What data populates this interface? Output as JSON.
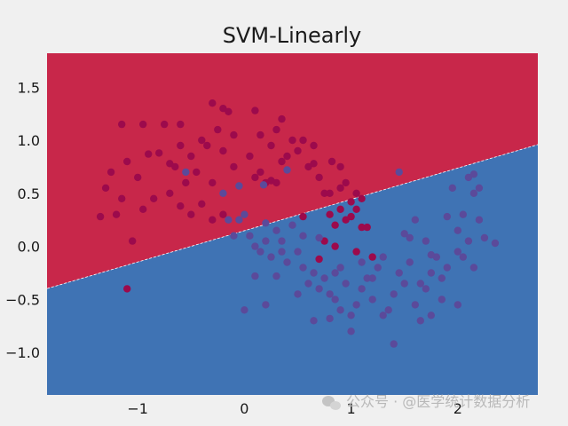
{
  "chart_data": {
    "type": "scatter",
    "title": "SVM-Linearly",
    "xlabel": "",
    "ylabel": "",
    "xlim": [
      -1.85,
      2.75
    ],
    "ylim": [
      -1.4,
      1.82
    ],
    "x_ticks": [
      {
        "value": -1,
        "label": "−1"
      },
      {
        "value": 0,
        "label": "0"
      },
      {
        "value": 1,
        "label": "1"
      },
      {
        "value": 2,
        "label": "2"
      }
    ],
    "y_ticks": [
      {
        "value": 1.5,
        "label": "1.5"
      },
      {
        "value": 1.0,
        "label": "1.0"
      },
      {
        "value": 0.5,
        "label": "0.5"
      },
      {
        "value": 0.0,
        "label": "0.0"
      },
      {
        "value": -0.5,
        "label": "−0.5"
      },
      {
        "value": -1.0,
        "label": "−1.0"
      }
    ],
    "grid": false,
    "decision_boundary": {
      "slope": 0.295,
      "intercept": 0.148
    },
    "regions": {
      "upper_color": "#c8274a",
      "lower_color": "#3f73b4"
    },
    "series": [
      {
        "class": 0,
        "color": "#9c0a4c",
        "points": [
          [
            -1.15,
            1.15
          ],
          [
            -0.95,
            1.15
          ],
          [
            -0.75,
            1.15
          ],
          [
            -0.6,
            1.15
          ],
          [
            -0.3,
            1.35
          ],
          [
            -0.2,
            1.3
          ],
          [
            -0.15,
            1.27
          ],
          [
            -1.3,
            0.55
          ],
          [
            -1.1,
            0.8
          ],
          [
            -1.0,
            0.65
          ],
          [
            -0.9,
            0.87
          ],
          [
            -0.8,
            0.88
          ],
          [
            -0.7,
            0.78
          ],
          [
            -0.65,
            0.75
          ],
          [
            -0.55,
            0.6
          ],
          [
            -0.5,
            0.85
          ],
          [
            -0.4,
            1.0
          ],
          [
            -0.35,
            0.95
          ],
          [
            -0.25,
            1.1
          ],
          [
            -0.2,
            0.9
          ],
          [
            -0.1,
            1.05
          ],
          [
            0.1,
            1.28
          ],
          [
            0.15,
            1.05
          ],
          [
            0.25,
            0.95
          ],
          [
            0.3,
            1.1
          ],
          [
            0.35,
            1.2
          ],
          [
            0.45,
            1.0
          ],
          [
            0.5,
            0.9
          ],
          [
            0.55,
            1.0
          ],
          [
            0.65,
            0.78
          ],
          [
            0.7,
            0.65
          ],
          [
            0.75,
            0.5
          ],
          [
            0.8,
            0.5
          ],
          [
            0.82,
            0.8
          ],
          [
            0.9,
            0.75
          ],
          [
            0.95,
            0.6
          ],
          [
            1.05,
            0.5
          ],
          [
            1.1,
            0.45
          ],
          [
            -1.35,
            0.28
          ],
          [
            -1.2,
            0.3
          ],
          [
            -1.05,
            0.05
          ],
          [
            -0.6,
            0.38
          ],
          [
            -0.5,
            0.3
          ],
          [
            -0.4,
            0.4
          ],
          [
            -0.3,
            0.25
          ],
          [
            -0.2,
            0.3
          ],
          [
            0.1,
            0.65
          ],
          [
            0.15,
            0.7
          ],
          [
            0.2,
            0.6
          ],
          [
            0.25,
            0.62
          ],
          [
            -1.1,
            -0.4
          ],
          [
            0.55,
            0.28
          ],
          [
            0.8,
            0.3
          ],
          [
            0.9,
            0.35
          ],
          [
            1.0,
            0.28
          ],
          [
            1.05,
            0.35
          ],
          [
            0.85,
            0.2
          ],
          [
            0.95,
            0.25
          ],
          [
            1.1,
            0.18
          ],
          [
            0.75,
            0.05
          ],
          [
            0.85,
            0.0
          ],
          [
            0.7,
            -0.12
          ],
          [
            1.05,
            -0.05
          ],
          [
            1.15,
            0.18
          ],
          [
            1.2,
            -0.1
          ],
          [
            -1.25,
            0.7
          ],
          [
            -0.85,
            0.45
          ],
          [
            -0.7,
            0.5
          ],
          [
            -0.3,
            0.6
          ],
          [
            0.05,
            0.85
          ],
          [
            -0.45,
            0.7
          ],
          [
            0.6,
            0.75
          ],
          [
            0.35,
            0.8
          ],
          [
            0.4,
            0.85
          ],
          [
            -0.6,
            0.95
          ],
          [
            -1.15,
            0.45
          ],
          [
            -0.95,
            0.35
          ],
          [
            -0.1,
            0.75
          ],
          [
            0.65,
            0.95
          ],
          [
            0.3,
            0.6
          ],
          [
            0.9,
            0.55
          ],
          [
            1.0,
            0.42
          ]
        ]
      },
      {
        "class": 1,
        "color": "#5b4a9a",
        "points": [
          [
            -0.55,
            0.7
          ],
          [
            0.4,
            0.72
          ],
          [
            0.18,
            0.58
          ],
          [
            -0.2,
            0.5
          ],
          [
            1.45,
            0.7
          ],
          [
            -0.05,
            0.57
          ],
          [
            -0.15,
            0.25
          ],
          [
            -0.05,
            0.25
          ],
          [
            0.0,
            0.3
          ],
          [
            0.05,
            0.1
          ],
          [
            0.1,
            0.0
          ],
          [
            0.15,
            -0.05
          ],
          [
            0.2,
            0.05
          ],
          [
            0.25,
            -0.1
          ],
          [
            0.3,
            0.15
          ],
          [
            0.35,
            0.05
          ],
          [
            0.4,
            -0.15
          ],
          [
            0.45,
            0.2
          ],
          [
            0.5,
            -0.05
          ],
          [
            0.55,
            -0.2
          ],
          [
            0.6,
            -0.35
          ],
          [
            0.65,
            -0.25
          ],
          [
            0.7,
            -0.4
          ],
          [
            0.75,
            -0.3
          ],
          [
            0.8,
            -0.45
          ],
          [
            0.85,
            -0.5
          ],
          [
            0.9,
            -0.2
          ],
          [
            0.95,
            -0.35
          ],
          [
            1.0,
            -0.65
          ],
          [
            1.05,
            -0.55
          ],
          [
            1.1,
            -0.4
          ],
          [
            1.15,
            -0.3
          ],
          [
            1.2,
            -0.5
          ],
          [
            1.25,
            -0.2
          ],
          [
            1.3,
            -0.1
          ],
          [
            1.35,
            -0.6
          ],
          [
            1.4,
            -0.45
          ],
          [
            1.45,
            -0.25
          ],
          [
            1.5,
            -0.35
          ],
          [
            1.55,
            -0.15
          ],
          [
            1.6,
            -0.55
          ],
          [
            1.65,
            -0.35
          ],
          [
            1.7,
            -0.4
          ],
          [
            1.75,
            -0.25
          ],
          [
            1.8,
            -0.1
          ],
          [
            1.85,
            -0.5
          ],
          [
            1.9,
            0.28
          ],
          [
            2.0,
            0.15
          ],
          [
            2.05,
            0.3
          ],
          [
            2.1,
            0.65
          ],
          [
            2.15,
            0.5
          ],
          [
            2.2,
            0.55
          ],
          [
            1.95,
            0.55
          ],
          [
            2.0,
            -0.05
          ],
          [
            2.1,
            0.05
          ],
          [
            2.15,
            -0.2
          ],
          [
            2.25,
            0.08
          ],
          [
            2.35,
            0.03
          ],
          [
            1.5,
            0.12
          ],
          [
            1.55,
            0.08
          ],
          [
            1.6,
            0.25
          ],
          [
            1.7,
            0.05
          ],
          [
            1.85,
            -0.3
          ],
          [
            2.05,
            -0.1
          ],
          [
            1.75,
            -0.65
          ],
          [
            1.65,
            -0.7
          ],
          [
            1.4,
            -0.92
          ],
          [
            1.0,
            -0.8
          ],
          [
            0.8,
            -0.68
          ],
          [
            0.65,
            -0.7
          ],
          [
            0.5,
            -0.45
          ],
          [
            0.3,
            -0.28
          ],
          [
            0.1,
            -0.28
          ],
          [
            0.0,
            -0.6
          ],
          [
            0.2,
            -0.55
          ],
          [
            0.9,
            -0.6
          ],
          [
            1.3,
            -0.65
          ],
          [
            2.0,
            -0.55
          ],
          [
            1.2,
            -0.3
          ],
          [
            0.55,
            0.1
          ],
          [
            0.7,
            0.08
          ],
          [
            0.35,
            -0.05
          ],
          [
            0.2,
            0.22
          ],
          [
            -0.1,
            0.1
          ],
          [
            2.15,
            0.68
          ],
          [
            0.85,
            -0.25
          ],
          [
            1.1,
            -0.15
          ],
          [
            1.75,
            -0.08
          ],
          [
            2.2,
            0.25
          ],
          [
            1.9,
            -0.2
          ]
        ]
      }
    ]
  },
  "watermark": {
    "text": "公众号 · @医学统计数据分析"
  }
}
